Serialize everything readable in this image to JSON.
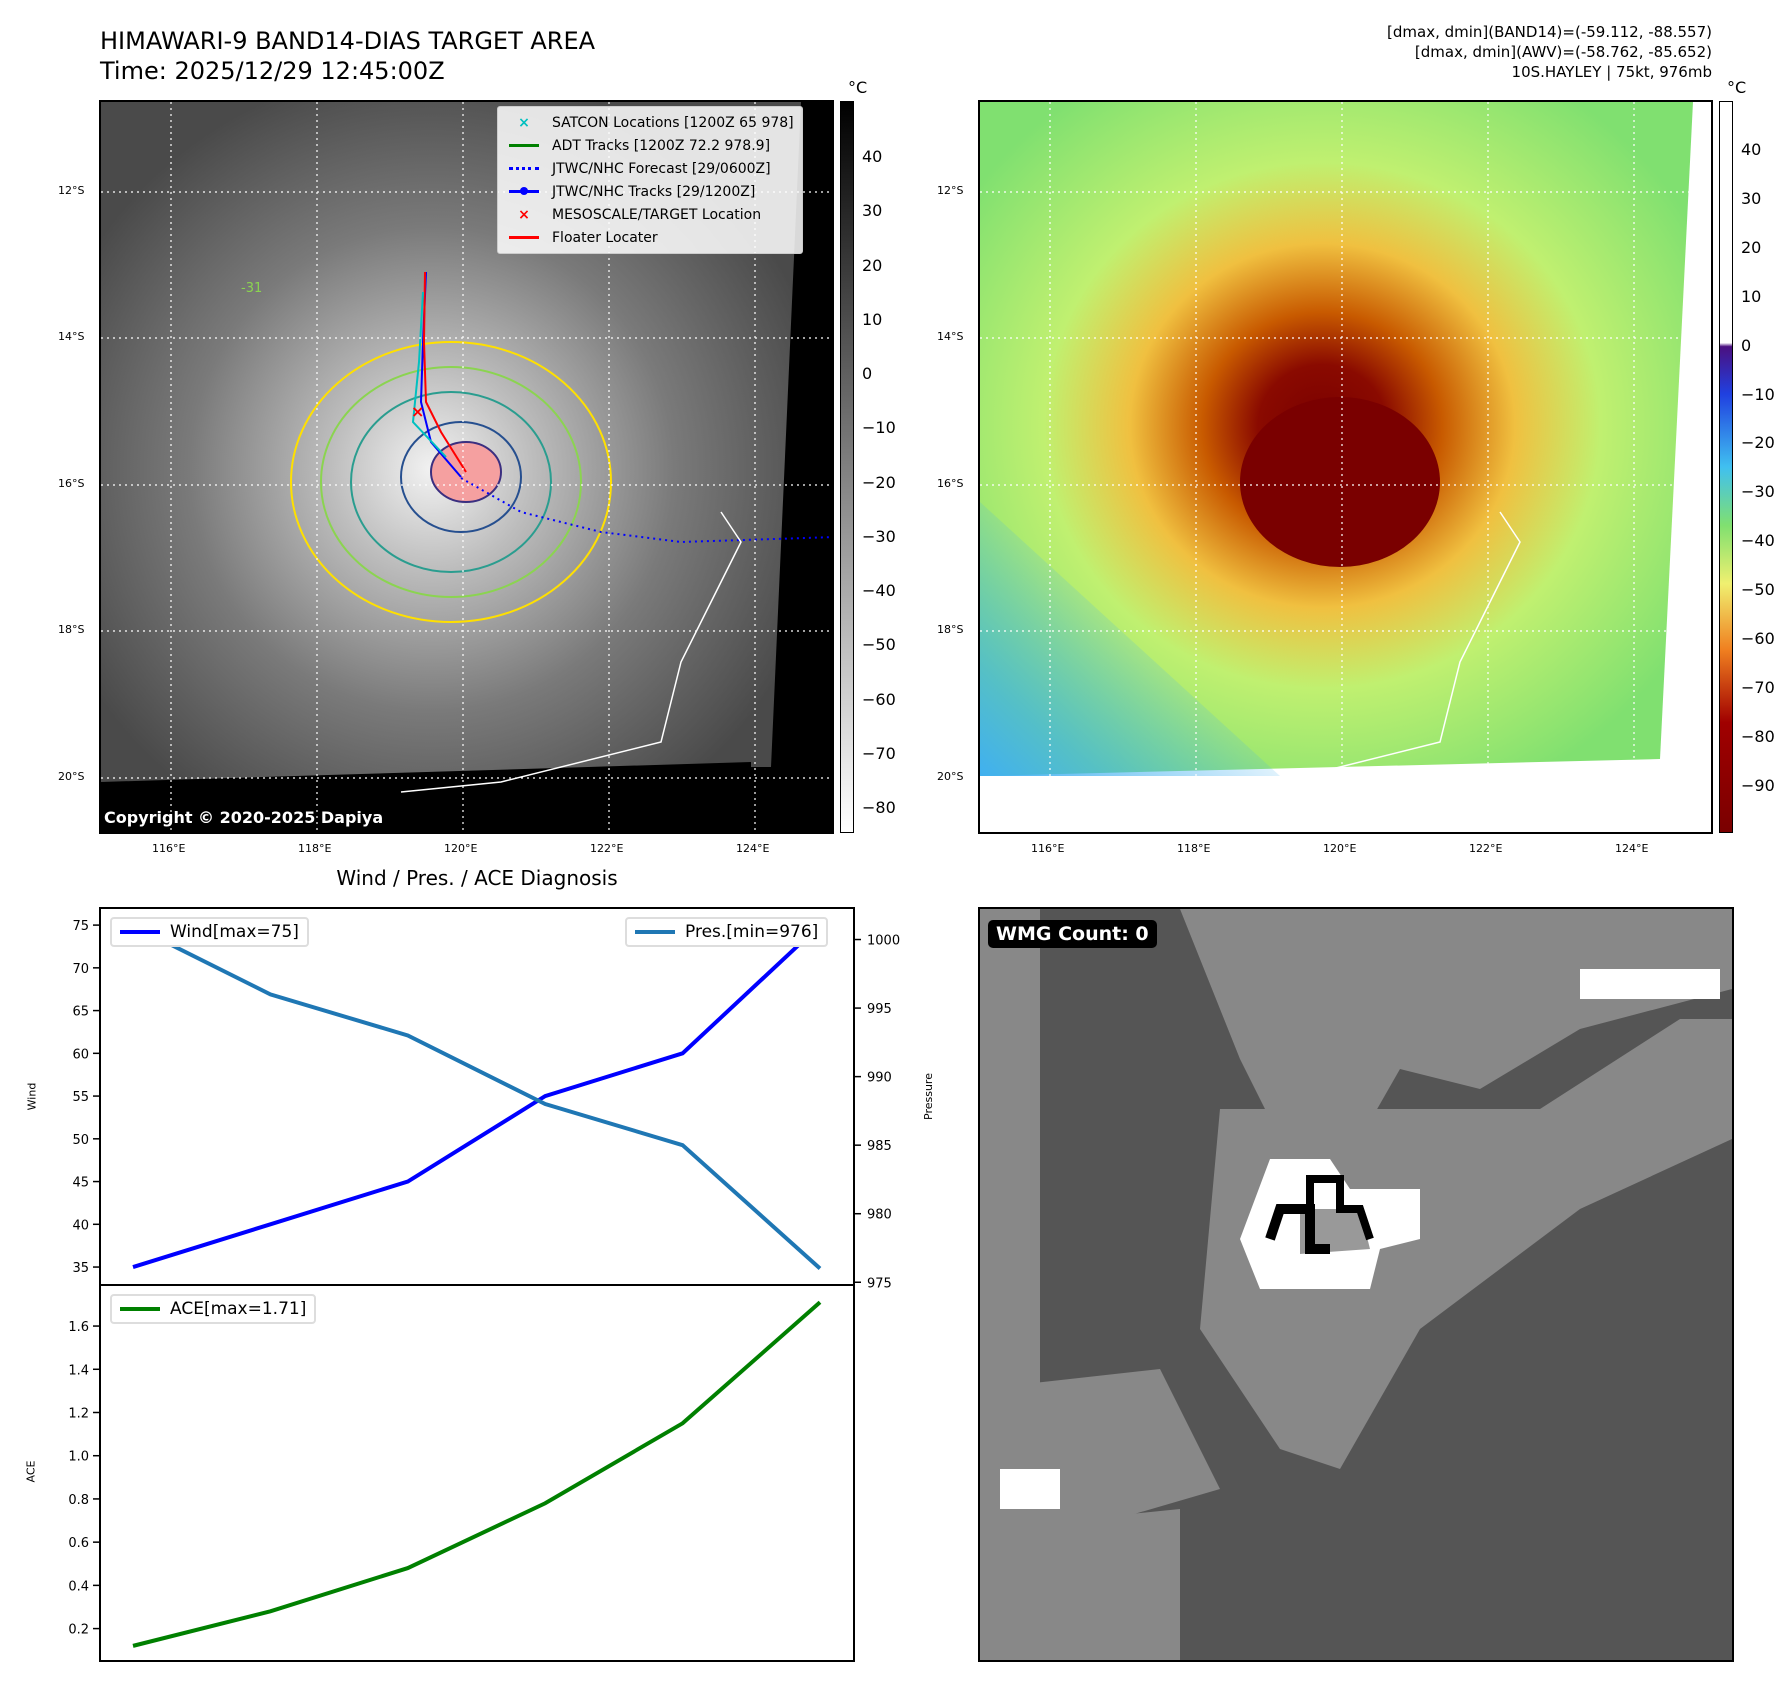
{
  "header": {
    "title": "HIMAWARI-9 BAND14-DIAS TARGET AREA",
    "time": "Time: 2025/12/29 12:45:00Z"
  },
  "info": {
    "band14": "[dmax, dmin](BAND14)=(-59.112, -88.557)",
    "awv": "[dmax, dmin](AWV)=(-58.762, -85.652)",
    "storm": "10S.HAYLEY | 75kt, 976mb"
  },
  "map": {
    "lat_ticks": [
      "12°S",
      "14°S",
      "16°S",
      "18°S",
      "20°S"
    ],
    "lon_ticks": [
      "116°E",
      "118°E",
      "120°E",
      "122°E",
      "124°E"
    ],
    "copyright": "Copyright © 2020-2025 Dapiya",
    "legend": [
      {
        "label": "SATCON Locations [1200Z 65 978]",
        "color": "#00c0c0",
        "icon": "x-marker-icon"
      },
      {
        "label": "ADT Tracks [1200Z 72.2 978.9]",
        "color": "#008000",
        "icon": "solid-line-icon"
      },
      {
        "label": "JTWC/NHC Forecast [29/0600Z]",
        "color": "#0000ff",
        "icon": "dotted-line-icon"
      },
      {
        "label": "JTWC/NHC Tracks [29/1200Z]",
        "color": "#0000ff",
        "icon": "line-dot-icon"
      },
      {
        "label": "MESOSCALE/TARGET Location",
        "color": "#ff0000",
        "icon": "x-marker-icon"
      },
      {
        "label": "Floater Locater",
        "color": "#ff0000",
        "icon": "solid-line-icon"
      }
    ],
    "contour_label": "-31"
  },
  "colorbar1": {
    "unit": "°C",
    "ticks": [
      "40",
      "30",
      "20",
      "10",
      "0",
      "−10",
      "−20",
      "−30",
      "−40",
      "−50",
      "−60",
      "−70",
      "−80"
    ]
  },
  "colorbar2": {
    "unit": "°C",
    "ticks": [
      "40",
      "30",
      "20",
      "10",
      "0",
      "−10",
      "−20",
      "−30",
      "−40",
      "−50",
      "−60",
      "−70",
      "−80",
      "−90"
    ]
  },
  "diag": {
    "title": "Wind / Pres. / ACE Diagnosis",
    "wind_legend": "Wind[max=75]",
    "pres_legend": "Pres.[min=976]",
    "ace_legend": "ACE[max=1.71]",
    "wind_ylabel": "Wind",
    "pres_ylabel": "Pressure",
    "ace_ylabel": "ACE"
  },
  "wmg": {
    "label": "WMG Count: 0"
  },
  "chart_data": [
    {
      "type": "line",
      "title": "Wind / Pres. / ACE Diagnosis",
      "x": [
        0,
        1,
        2,
        3,
        4,
        5
      ],
      "series": [
        {
          "name": "Wind[max=75]",
          "axis": "left",
          "color": "#0000ff",
          "values": [
            35,
            40,
            45,
            55,
            60,
            75
          ]
        },
        {
          "name": "Pres.[min=976]",
          "axis": "right",
          "color": "#1f77b4",
          "values": [
            1001,
            996,
            993,
            988,
            985,
            976
          ]
        }
      ],
      "ylabel": "Wind",
      "y2label": "Pressure",
      "ylim": [
        32.9,
        77
      ],
      "y2lim": [
        974.8,
        1002.3
      ],
      "yticks": [
        35,
        40,
        45,
        50,
        55,
        60,
        65,
        70,
        75
      ],
      "y2ticks": [
        975,
        980,
        985,
        990,
        995,
        1000
      ]
    },
    {
      "type": "line",
      "x": [
        0,
        1,
        2,
        3,
        4,
        5
      ],
      "series": [
        {
          "name": "ACE[max=1.71]",
          "color": "#008000",
          "values": [
            0.12,
            0.28,
            0.48,
            0.78,
            1.15,
            1.71
          ]
        }
      ],
      "ylabel": "ACE",
      "ylim": [
        0.05,
        1.79
      ],
      "yticks": [
        0.2,
        0.4,
        0.6,
        0.8,
        1.0,
        1.2,
        1.4,
        1.6
      ]
    }
  ]
}
